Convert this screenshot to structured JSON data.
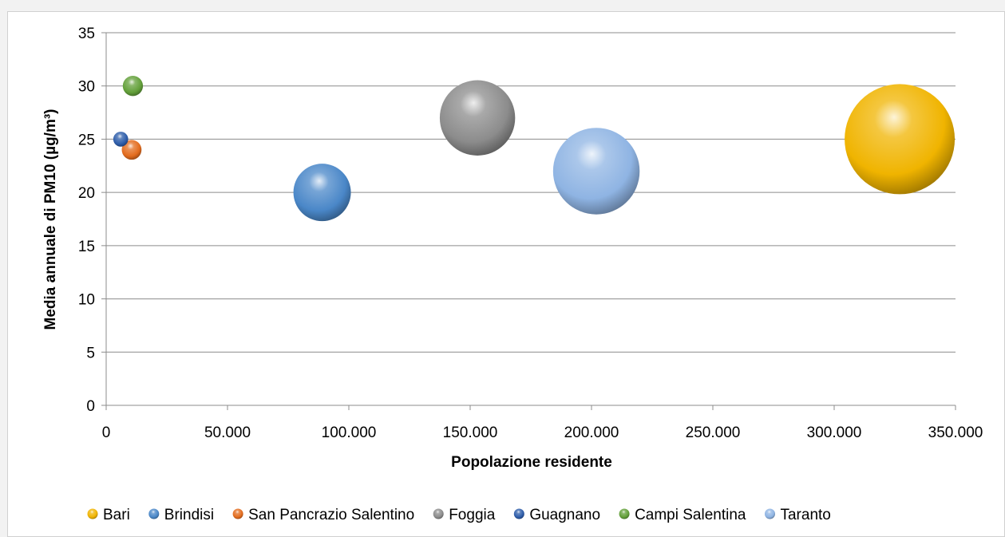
{
  "chart_data": {
    "type": "bubble",
    "xlabel": "Popolazione residente",
    "ylabel": "Media annuale di PM10 (µg/m³)",
    "xlim": [
      0,
      350000
    ],
    "ylim": [
      0,
      35
    ],
    "x_ticks": [
      {
        "value": 0,
        "label": "0"
      },
      {
        "value": 50000,
        "label": "50.000"
      },
      {
        "value": 100000,
        "label": "100.000"
      },
      {
        "value": 150000,
        "label": "150.000"
      },
      {
        "value": 200000,
        "label": "200.000"
      },
      {
        "value": 250000,
        "label": "250.000"
      },
      {
        "value": 300000,
        "label": "300.000"
      },
      {
        "value": 350000,
        "label": "350.000"
      }
    ],
    "y_ticks": [
      {
        "value": 0,
        "label": "0"
      },
      {
        "value": 5,
        "label": "5"
      },
      {
        "value": 10,
        "label": "10"
      },
      {
        "value": 15,
        "label": "15"
      },
      {
        "value": 20,
        "label": "20"
      },
      {
        "value": 25,
        "label": "25"
      },
      {
        "value": 30,
        "label": "30"
      },
      {
        "value": 35,
        "label": "35"
      }
    ],
    "grid": "horizontal",
    "legend_position": "bottom",
    "series": [
      {
        "name": "Bari",
        "x": 327000,
        "y": 25,
        "size": 327000,
        "color": "#f0b400"
      },
      {
        "name": "Brindisi",
        "x": 89000,
        "y": 20,
        "size": 89000,
        "color": "#4a87c8"
      },
      {
        "name": "San Pancrazio Salentino",
        "x": 10500,
        "y": 24,
        "size": 10500,
        "color": "#e36c1e"
      },
      {
        "name": "Foggia",
        "x": 153000,
        "y": 27,
        "size": 153000,
        "color": "#8c8c8c"
      },
      {
        "name": "Guagnano",
        "x": 6000,
        "y": 25,
        "size": 6000,
        "color": "#2e5daa"
      },
      {
        "name": "Campi Salentina",
        "x": 11000,
        "y": 30,
        "size": 11000,
        "color": "#63a03a"
      },
      {
        "name": "Taranto",
        "x": 202000,
        "y": 22,
        "size": 202000,
        "color": "#8fb4e3"
      }
    ]
  }
}
